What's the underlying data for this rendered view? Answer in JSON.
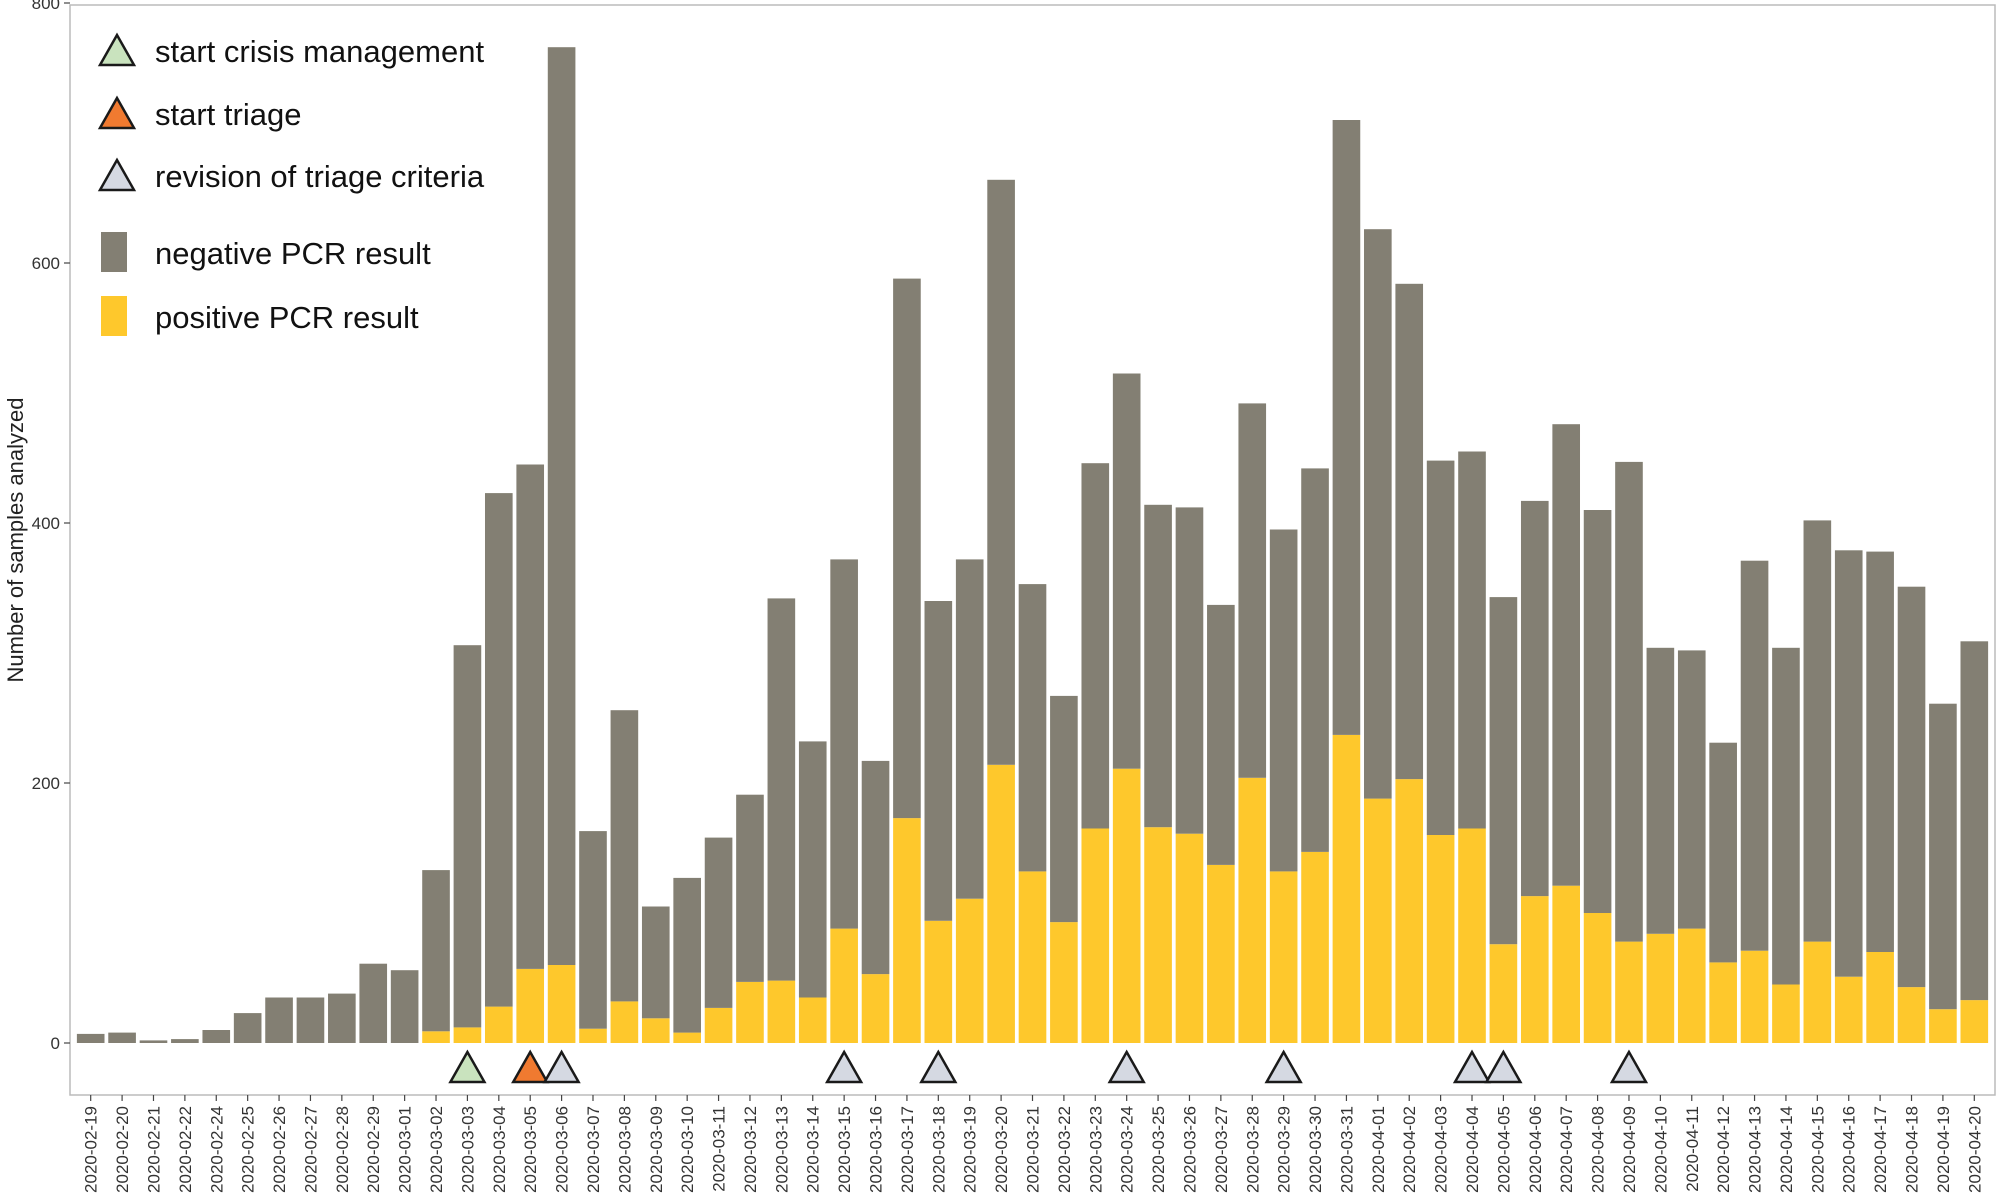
{
  "chart_data": {
    "type": "bar",
    "stacked": true,
    "ylabel": "Number of samples analyzed",
    "xlabel": "",
    "ylim": [
      -40,
      800
    ],
    "yticks": [
      0,
      200,
      400,
      600,
      800
    ],
    "grid": false,
    "legend_position": "top-left",
    "categories": [
      "2020-02-19",
      "2020-02-20",
      "2020-02-21",
      "2020-02-22",
      "2020-02-24",
      "2020-02-25",
      "2020-02-26",
      "2020-02-27",
      "2020-02-28",
      "2020-02-29",
      "2020-03-01",
      "2020-03-02",
      "2020-03-03",
      "2020-03-04",
      "2020-03-05",
      "2020-03-06",
      "2020-03-07",
      "2020-03-08",
      "2020-03-09",
      "2020-03-10",
      "2020-03-11",
      "2020-03-12",
      "2020-03-13",
      "2020-03-14",
      "2020-03-15",
      "2020-03-16",
      "2020-03-17",
      "2020-03-18",
      "2020-03-19",
      "2020-03-20",
      "2020-03-21",
      "2020-03-22",
      "2020-03-23",
      "2020-03-24",
      "2020-03-25",
      "2020-03-26",
      "2020-03-27",
      "2020-03-28",
      "2020-03-29",
      "2020-03-30",
      "2020-03-31",
      "2020-04-01",
      "2020-04-02",
      "2020-04-03",
      "2020-04-04",
      "2020-04-05",
      "2020-04-06",
      "2020-04-07",
      "2020-04-08",
      "2020-04-09",
      "2020-04-10",
      "2020-04-11",
      "2020-04-12",
      "2020-04-13",
      "2020-04-14",
      "2020-04-15",
      "2020-04-16",
      "2020-04-17",
      "2020-04-18",
      "2020-04-19",
      "2020-04-20"
    ],
    "series": [
      {
        "name": "positive PCR result",
        "color": "#FEC82C",
        "values": [
          0,
          0,
          0,
          0,
          0,
          0,
          0,
          0,
          0,
          0,
          0,
          9,
          12,
          28,
          57,
          60,
          11,
          32,
          19,
          8,
          27,
          47,
          48,
          35,
          88,
          53,
          173,
          94,
          111,
          214,
          132,
          93,
          165,
          211,
          166,
          161,
          137,
          204,
          132,
          147,
          237,
          188,
          203,
          160,
          165,
          76,
          113,
          121,
          100,
          78,
          84,
          88,
          62,
          71,
          45,
          78,
          51,
          70,
          43,
          26,
          33
        ]
      },
      {
        "name": "negative PCR result",
        "color": "#837F73",
        "values": [
          7,
          8,
          2,
          3,
          10,
          23,
          35,
          35,
          38,
          61,
          56,
          124,
          294,
          395,
          388,
          706,
          152,
          224,
          86,
          119,
          131,
          144,
          294,
          197,
          284,
          164,
          415,
          246,
          261,
          450,
          221,
          174,
          281,
          304,
          248,
          251,
          200,
          288,
          263,
          295,
          473,
          438,
          381,
          288,
          290,
          267,
          304,
          355,
          310,
          369,
          220,
          214,
          169,
          300,
          259,
          324,
          328,
          308,
          308,
          235,
          276
        ]
      }
    ],
    "markers": [
      {
        "category": "2020-03-03",
        "type": "start crisis management",
        "color": "#C9E3BE"
      },
      {
        "category": "2020-03-05",
        "type": "start triage",
        "color": "#F07A30"
      },
      {
        "category": "2020-03-06",
        "type": "revision of triage criteria",
        "color": "#D5D9E2"
      },
      {
        "category": "2020-03-15",
        "type": "revision of triage criteria",
        "color": "#D5D9E2"
      },
      {
        "category": "2020-03-18",
        "type": "revision of triage criteria",
        "color": "#D5D9E2"
      },
      {
        "category": "2020-03-24",
        "type": "revision of triage criteria",
        "color": "#D5D9E2"
      },
      {
        "category": "2020-03-29",
        "type": "revision of triage criteria",
        "color": "#D5D9E2"
      },
      {
        "category": "2020-04-04",
        "type": "revision of triage criteria",
        "color": "#D5D9E2"
      },
      {
        "category": "2020-04-05",
        "type": "revision of triage criteria",
        "color": "#D5D9E2"
      },
      {
        "category": "2020-04-09",
        "type": "revision of triage criteria",
        "color": "#D5D9E2"
      }
    ],
    "legend": [
      {
        "label": "start crisis management",
        "shape": "triangle",
        "color": "#C9E3BE"
      },
      {
        "label": "start triage",
        "shape": "triangle",
        "color": "#F07A30"
      },
      {
        "label": "revision of triage criteria",
        "shape": "triangle",
        "color": "#D5D9E2"
      },
      {
        "label": "negative PCR result",
        "shape": "square",
        "color": "#837F73"
      },
      {
        "label": "positive PCR result",
        "shape": "square",
        "color": "#FEC82C"
      }
    ]
  }
}
